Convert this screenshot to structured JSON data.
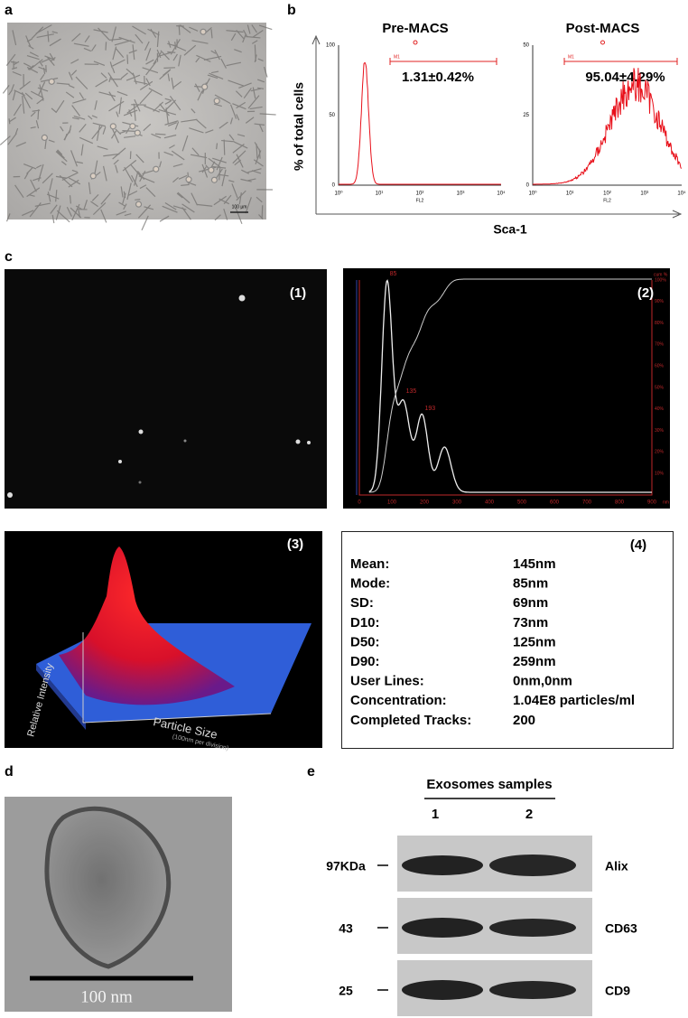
{
  "panels": {
    "a": {
      "label": "a",
      "scale": "100 µm"
    },
    "b": {
      "label": "b",
      "y_label": "% of total cells",
      "x_label": "Sca-1",
      "plots": [
        {
          "title": "Pre-MACS",
          "stat": "1.31±0.42%",
          "gate": "M1",
          "x_axis": "FL2",
          "yticks": [
            "0",
            "50",
            "100"
          ],
          "xticks": [
            "10⁰",
            "10¹",
            "10²",
            "10³",
            "10⁴"
          ]
        },
        {
          "title": "Post-MACS",
          "stat": "95.04±4.29%",
          "gate": "M1",
          "x_axis": "FL2",
          "yticks": [
            "0",
            "25",
            "50"
          ],
          "xticks": [
            "10⁰",
            "10¹",
            "10²",
            "10³",
            "10⁴"
          ]
        }
      ]
    },
    "c": {
      "label": "c",
      "image": {
        "tag": "(1)"
      },
      "distribution": {
        "tag": "(2)",
        "peaks": [
          "85",
          "135",
          "193"
        ],
        "xticks": [
          "0",
          "100",
          "200",
          "300",
          "400",
          "500",
          "600",
          "700",
          "800",
          "900"
        ],
        "x_unit": "nm",
        "right_ticks": [
          "10%",
          "20%",
          "30%",
          "40%",
          "50%",
          "60%",
          "70%",
          "80%",
          "90%",
          "100%"
        ],
        "right_unit": "cum %"
      },
      "surface": {
        "tag": "(3)",
        "y_label": "Relative Intensity",
        "x_label": "Particle Size",
        "x_note": "(100nm per division)"
      },
      "summary": {
        "tag": "(4)",
        "rows": [
          [
            "Mean:",
            "145nm"
          ],
          [
            "Mode:",
            "85nm"
          ],
          [
            "SD:",
            "69nm"
          ],
          [
            "D10:",
            "73nm"
          ],
          [
            "D50:",
            "125nm"
          ],
          [
            "D90:",
            "259nm"
          ],
          [
            "User Lines:",
            "0nm,0nm"
          ],
          [
            "Concentration:",
            "1.04E8 particles/ml"
          ],
          [
            "Completed Tracks:",
            "200"
          ]
        ]
      }
    },
    "d": {
      "label": "d",
      "scale": "100 nm"
    },
    "e": {
      "label": "e",
      "header": "Exosomes samples",
      "lanes": [
        "1",
        "2"
      ],
      "bands": [
        {
          "size": "97KDa",
          "name": "Alix"
        },
        {
          "size": "43",
          "name": "CD63"
        },
        {
          "size": "25",
          "name": "CD9"
        }
      ]
    }
  }
}
